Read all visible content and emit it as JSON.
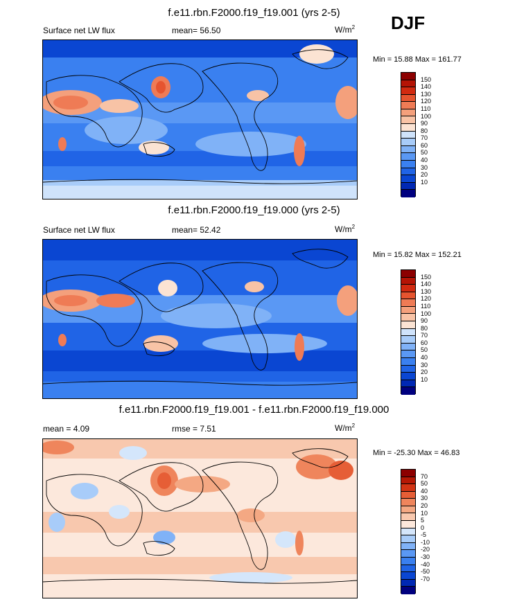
{
  "season": "DJF",
  "colors": {
    "abs_scale": [
      "#00007f",
      "#0028b4",
      "#0a46d2",
      "#2064e6",
      "#3a80f0",
      "#5a98f4",
      "#80b2f7",
      "#a8ccf9",
      "#cfe3fb",
      "#fbe3d3",
      "#f8c3a6",
      "#f4a07c",
      "#ef7b55",
      "#e6542f",
      "#d22a10",
      "#b51405",
      "#8c0000"
    ],
    "diff_scale": [
      "#00007f",
      "#0028b4",
      "#0a46d2",
      "#2064e6",
      "#3a80f0",
      "#5a98f4",
      "#80b2f7",
      "#a8ccf9",
      "#d4e6fb",
      "#fce8dc",
      "#f8c8ae",
      "#f4a883",
      "#ef855c",
      "#e65e36",
      "#d23414",
      "#b51805",
      "#8c0000"
    ]
  },
  "panels": [
    {
      "id": "top",
      "title": "f.e11.rbn.F2000.f19_f19.001 (yrs 2-5)",
      "left_label": "Surface net LW flux",
      "center_label": "mean=  56.50",
      "units": "W/m",
      "units_sup": "2",
      "minmax": "Min =  15.88 Max = 161.77",
      "ticks": [
        "150",
        "140",
        "130",
        "120",
        "110",
        "100",
        "90",
        "80",
        "70",
        "60",
        "50",
        "40",
        "30",
        "20",
        "10"
      ]
    },
    {
      "id": "middle",
      "title": "f.e11.rbn.F2000.f19_f19.000 (yrs 2-5)",
      "left_label": "Surface net LW flux",
      "center_label": "mean=  52.42",
      "units": "W/m",
      "units_sup": "2",
      "minmax": "Min =  15.82 Max = 152.21",
      "ticks": [
        "150",
        "140",
        "130",
        "120",
        "110",
        "100",
        "90",
        "80",
        "70",
        "60",
        "50",
        "40",
        "30",
        "20",
        "10"
      ]
    },
    {
      "id": "bottom",
      "title": "f.e11.rbn.F2000.f19_f19.001 - f.e11.rbn.F2000.f19_f19.000",
      "left_label": "mean =  4.09",
      "center_label": "rmse =  7.51",
      "units": "W/m",
      "units_sup": "2",
      "minmax": "Min = -25.30 Max =  46.83",
      "ticks": [
        "70",
        "50",
        "40",
        "30",
        "20",
        "10",
        "5",
        "0",
        "-5",
        "-10",
        "-20",
        "-30",
        "-40",
        "-50",
        "-70"
      ]
    }
  ]
}
